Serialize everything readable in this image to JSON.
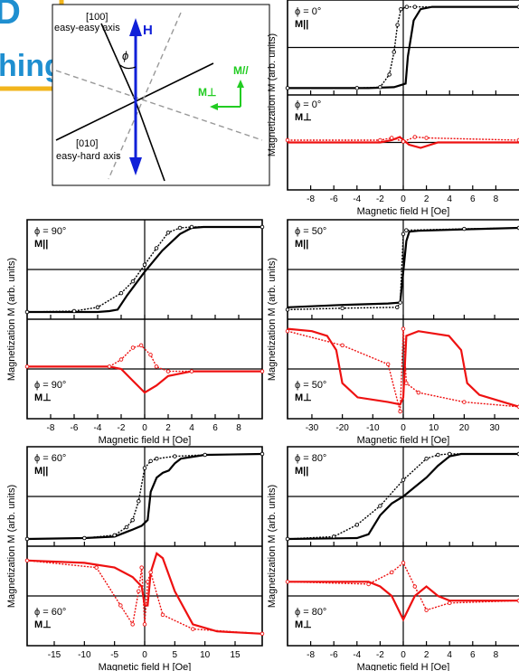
{
  "journal_logo": {
    "fragment_top": "D",
    "fragment_bottom": "hing",
    "color": "#1f8fd0",
    "frame_color": "#f2b51c"
  },
  "diagram": {
    "axis_100_label": "[100]",
    "axis_100_caption": "easy-easy axis",
    "axis_010_label": "[010]",
    "axis_010_caption": "easy-hard axis",
    "field_label": "H",
    "angle_label": "ϕ",
    "m_parallel_label": "M//",
    "m_perp_label": "M⊥",
    "field_color": "#1020d8",
    "components_color": "#22cc22"
  },
  "colors": {
    "parallel": "#000000",
    "perpendicular": "#ee1111"
  },
  "chart_data": [
    {
      "type": "line",
      "panel": "phi0",
      "xlabel": "Magnetic field H [Oe]",
      "ylabel": "Magnetization M (arb. units)",
      "x_ticks": [
        "-8",
        "-6",
        "-4",
        "-2",
        "0",
        "2",
        "4",
        "6",
        "8"
      ],
      "xlim": [
        -10,
        10
      ],
      "top": {
        "label_phi": "ϕ = 0°",
        "label_comp": "M||",
        "series": [
          {
            "style": "solid",
            "x": [
              -10,
              -3,
              -0.8,
              -0.3,
              0.2,
              0.4,
              0.9,
              1.5,
              2.5,
              4,
              10
            ],
            "y": [
              -0.9,
              -0.9,
              -0.88,
              -0.84,
              -0.8,
              -0.2,
              0.6,
              0.85,
              0.9,
              0.9,
              0.9
            ]
          },
          {
            "style": "open",
            "x": [
              -10,
              -4,
              -2,
              -1.2,
              -0.8,
              -0.5,
              -0.2,
              0.3,
              1,
              10
            ],
            "y": [
              -0.9,
              -0.9,
              -0.88,
              -0.6,
              -0.1,
              0.5,
              0.85,
              0.9,
              0.9,
              0.9
            ]
          }
        ]
      },
      "bottom": {
        "label_phi": "ϕ = 0°",
        "label_comp": "M⊥",
        "series": [
          {
            "style": "solid",
            "x": [
              -10,
              -2,
              -1,
              -0.3,
              0.5,
              1.5,
              3,
              10
            ],
            "y": [
              0,
              0,
              0.05,
              0.12,
              -0.05,
              -0.12,
              0,
              0
            ]
          },
          {
            "style": "open",
            "x": [
              -10,
              -2,
              -1,
              0,
              1,
              2,
              10
            ],
            "y": [
              0.05,
              0.05,
              0.1,
              0.02,
              0.12,
              0.1,
              0.05
            ]
          }
        ]
      }
    },
    {
      "type": "line",
      "panel": "phi90",
      "xlabel": "Magnetic field H [Oe]",
      "ylabel": "Magnetization M (arb. units)",
      "x_ticks": [
        "-8",
        "-6",
        "-4",
        "-2",
        "0",
        "2",
        "4",
        "6",
        "8"
      ],
      "xlim": [
        -10,
        10
      ],
      "top": {
        "label_phi": "ϕ = 90°",
        "label_comp": "M||",
        "series": [
          {
            "style": "solid",
            "x": [
              -10,
              -4,
              -3,
              -2.3,
              -1.5,
              0,
              1.5,
              3,
              4,
              5,
              10
            ],
            "y": [
              -0.9,
              -0.9,
              -0.88,
              -0.85,
              -0.55,
              -0.05,
              0.4,
              0.75,
              0.88,
              0.9,
              0.9
            ]
          },
          {
            "style": "open",
            "x": [
              -10,
              -6,
              -4,
              -2,
              -1,
              0,
              1,
              2,
              3,
              4,
              10
            ],
            "y": [
              -0.9,
              -0.88,
              -0.8,
              -0.5,
              -0.25,
              0.1,
              0.45,
              0.78,
              0.88,
              0.9,
              0.9
            ]
          }
        ]
      },
      "bottom": {
        "label_phi": "ϕ = 90°",
        "label_comp": "M⊥",
        "series": [
          {
            "style": "solid",
            "x": [
              -10,
              -3,
              -2,
              -1,
              0,
              1,
              2,
              4,
              10
            ],
            "y": [
              0.05,
              0.05,
              0,
              -0.25,
              -0.5,
              -0.35,
              -0.15,
              -0.05,
              -0.05
            ]
          },
          {
            "style": "open",
            "x": [
              -10,
              -3,
              -2,
              -1,
              -0.3,
              0.5,
              1,
              2,
              4,
              10
            ],
            "y": [
              0.05,
              0.05,
              0.2,
              0.45,
              0.5,
              0.3,
              0.05,
              -0.05,
              -0.05,
              -0.05
            ]
          }
        ]
      }
    },
    {
      "type": "line",
      "panel": "phi50",
      "xlabel": "Magnetic field H [Oe]",
      "ylabel": "Magnetization M (arb. units)",
      "x_ticks": [
        "-30",
        "-20",
        "-10",
        "0",
        "10",
        "20",
        "30"
      ],
      "xlim": [
        -38,
        38
      ],
      "top": {
        "label_phi": "ϕ = 50°",
        "label_comp": "M||",
        "series": [
          {
            "style": "solid",
            "x": [
              -38,
              -20,
              -5,
              -1,
              1,
              2,
              5,
              20,
              38
            ],
            "y": [
              -0.8,
              -0.75,
              -0.72,
              -0.7,
              0.6,
              0.8,
              0.82,
              0.85,
              0.88
            ]
          },
          {
            "style": "open",
            "x": [
              -38,
              -20,
              -2,
              -1,
              0,
              1,
              20,
              38
            ],
            "y": [
              -0.85,
              -0.82,
              -0.8,
              -0.7,
              0.75,
              0.83,
              0.86,
              0.88
            ]
          }
        ]
      },
      "bottom": {
        "label_phi": "ϕ = 50°",
        "label_comp": "M⊥",
        "series": [
          {
            "style": "solid",
            "x": [
              -38,
              -30,
              -25,
              -22,
              -20,
              -15,
              -5,
              -1,
              0,
              1,
              5,
              15,
              19,
              21,
              25,
              38
            ],
            "y": [
              0.85,
              0.8,
              0.7,
              0.4,
              -0.3,
              -0.6,
              -0.7,
              -0.75,
              -0.6,
              0.7,
              0.8,
              0.7,
              0.4,
              -0.3,
              -0.55,
              -0.8
            ]
          },
          {
            "style": "open",
            "x": [
              -38,
              -20,
              -5,
              -1,
              0,
              1,
              5,
              20,
              38
            ],
            "y": [
              0.8,
              0.5,
              0.1,
              -0.9,
              0.85,
              -0.3,
              -0.5,
              -0.7,
              -0.8
            ]
          }
        ]
      }
    },
    {
      "type": "line",
      "panel": "phi60",
      "xlabel": "Magnetic field H [Oe]",
      "ylabel": "Magnetization M (arb. units)",
      "x_ticks": [
        "-15",
        "-10",
        "-5",
        "0",
        "5",
        "10",
        "15"
      ],
      "xlim": [
        -19.5,
        19.5
      ],
      "top": {
        "label_phi": "ϕ = 60°",
        "label_comp": "M||",
        "series": [
          {
            "style": "solid",
            "x": [
              -19.5,
              -10,
              -5,
              -3,
              -2,
              -0.5,
              0.5,
              1,
              2,
              3,
              4,
              5,
              6,
              10,
              19.5
            ],
            "y": [
              -0.9,
              -0.88,
              -0.85,
              -0.75,
              -0.7,
              -0.62,
              -0.5,
              0.1,
              0.4,
              0.5,
              0.55,
              0.7,
              0.8,
              0.88,
              0.9
            ]
          },
          {
            "style": "open",
            "x": [
              -19.5,
              -10,
              -5,
              -3,
              -2,
              -1,
              0,
              1,
              2,
              5,
              10,
              19.5
            ],
            "y": [
              -0.9,
              -0.88,
              -0.82,
              -0.65,
              -0.5,
              -0.1,
              0.6,
              0.75,
              0.8,
              0.85,
              0.88,
              0.9
            ]
          }
        ]
      },
      "bottom": {
        "label_phi": "ϕ = 60°",
        "label_comp": "M⊥",
        "series": [
          {
            "style": "solid",
            "x": [
              -19.5,
              -10,
              -5,
              -2,
              -0.5,
              0,
              0.5,
              1,
              2,
              3,
              5,
              8,
              12,
              19.5
            ],
            "y": [
              0.75,
              0.7,
              0.6,
              0.4,
              0.2,
              -0.2,
              -0.2,
              0.5,
              0.9,
              0.8,
              0.1,
              -0.6,
              -0.75,
              -0.8
            ]
          },
          {
            "style": "open",
            "x": [
              -19.5,
              -8,
              -4,
              -2,
              -1,
              -0.5,
              0,
              0.5,
              1,
              3,
              8,
              19.5
            ],
            "y": [
              0.75,
              0.6,
              -0.2,
              -0.6,
              0.1,
              0.6,
              -0.6,
              0.3,
              0.5,
              -0.4,
              -0.7,
              -0.8
            ]
          }
        ]
      }
    },
    {
      "type": "line",
      "panel": "phi80",
      "xlabel": "Magnetic field H [Oe]",
      "ylabel": "Magnetization M (arb. units)",
      "x_ticks": [
        "-8",
        "-6",
        "-4",
        "-2",
        "0",
        "2",
        "4",
        "6",
        "8"
      ],
      "xlim": [
        -10,
        10
      ],
      "top": {
        "label_phi": "ϕ = 80°",
        "label_comp": "M||",
        "series": [
          {
            "style": "solid",
            "x": [
              -10,
              -4,
              -3,
              -2,
              -1,
              0,
              1,
              2,
              3,
              4,
              5,
              10
            ],
            "y": [
              -0.9,
              -0.88,
              -0.8,
              -0.4,
              -0.15,
              0,
              0.2,
              0.4,
              0.65,
              0.85,
              0.9,
              0.9
            ]
          },
          {
            "style": "open",
            "x": [
              -10,
              -6,
              -4,
              -2,
              0,
              2,
              3,
              4,
              10
            ],
            "y": [
              -0.9,
              -0.85,
              -0.6,
              -0.2,
              0.35,
              0.8,
              0.88,
              0.9,
              0.9
            ]
          }
        ]
      },
      "bottom": {
        "label_phi": "ϕ = 80°",
        "label_comp": "M⊥",
        "series": [
          {
            "style": "solid",
            "x": [
              -10,
              -3,
              -2,
              -1,
              0,
              1,
              2,
              3,
              4,
              10
            ],
            "y": [
              0.3,
              0.3,
              0.2,
              0,
              -0.5,
              0,
              0.2,
              0,
              -0.1,
              -0.1
            ]
          },
          {
            "style": "open",
            "x": [
              -10,
              -3,
              -1,
              0,
              1,
              2,
              4,
              10
            ],
            "y": [
              0.3,
              0.25,
              0.5,
              0.7,
              0.2,
              -0.3,
              -0.15,
              -0.1
            ]
          }
        ]
      }
    }
  ]
}
